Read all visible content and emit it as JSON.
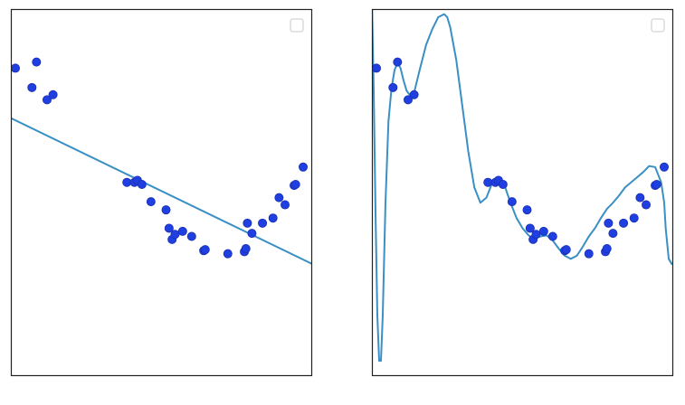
{
  "figure": {
    "background": "#ffffff"
  },
  "style": {
    "line_color": "#3a8fc4",
    "point_fill": "#1f3fe0",
    "point_edge": "#1a2fb0",
    "axes_edge": "#222222",
    "legend_edge": "#c8c8c8"
  },
  "chart_data": [
    {
      "type": "scatter",
      "title": "",
      "xlabel": "",
      "ylabel": "",
      "xlim": [
        0,
        1
      ],
      "ylim": [
        -2.2,
        1.4
      ],
      "xticks": [],
      "yticks": [],
      "grid": false,
      "legend": {
        "placement": "top-right",
        "entries": []
      },
      "points": {
        "x": [
          0.015,
          0.07,
          0.085,
          0.12,
          0.14,
          0.385,
          0.41,
          0.42,
          0.435,
          0.465,
          0.515,
          0.525,
          0.535,
          0.545,
          0.57,
          0.6,
          0.64,
          0.645,
          0.72,
          0.775,
          0.78,
          0.785,
          0.8,
          0.835,
          0.87,
          0.89,
          0.91,
          0.94,
          0.945,
          0.97
        ],
        "y": [
          0.82,
          0.63,
          0.88,
          0.51,
          0.56,
          -0.3,
          -0.3,
          -0.28,
          -0.32,
          -0.49,
          -0.57,
          -0.75,
          -0.86,
          -0.81,
          -0.78,
          -0.83,
          -0.97,
          -0.96,
          -1.0,
          -0.98,
          -0.95,
          -0.7,
          -0.8,
          -0.7,
          -0.65,
          -0.45,
          -0.52,
          -0.33,
          -0.32,
          -0.15
        ]
      },
      "fit": {
        "label": "",
        "x": [
          0.0,
          1.0
        ],
        "y": [
          0.33,
          -1.1
        ]
      }
    },
    {
      "type": "scatter",
      "title": "",
      "xlabel": "",
      "ylabel": "",
      "xlim": [
        0,
        1
      ],
      "ylim": [
        -2.2,
        1.4
      ],
      "xticks": [],
      "yticks": [],
      "grid": false,
      "legend": {
        "placement": "top-right",
        "entries": []
      },
      "points": {
        "x": [
          0.015,
          0.07,
          0.085,
          0.12,
          0.14,
          0.385,
          0.41,
          0.42,
          0.435,
          0.465,
          0.515,
          0.525,
          0.535,
          0.545,
          0.57,
          0.6,
          0.64,
          0.645,
          0.72,
          0.775,
          0.78,
          0.785,
          0.8,
          0.835,
          0.87,
          0.89,
          0.91,
          0.94,
          0.945,
          0.97
        ],
        "y": [
          0.82,
          0.63,
          0.88,
          0.51,
          0.56,
          -0.3,
          -0.3,
          -0.28,
          -0.32,
          -0.49,
          -0.57,
          -0.75,
          -0.86,
          -0.81,
          -0.78,
          -0.83,
          -0.97,
          -0.96,
          -1.0,
          -0.98,
          -0.95,
          -0.7,
          -0.8,
          -0.7,
          -0.65,
          -0.45,
          -0.52,
          -0.33,
          -0.32,
          -0.15
        ]
      },
      "fit": {
        "label": "",
        "x": [
          0.0,
          0.006,
          0.012,
          0.018,
          0.024,
          0.03,
          0.036,
          0.045,
          0.055,
          0.065,
          0.075,
          0.085,
          0.095,
          0.105,
          0.115,
          0.13,
          0.14,
          0.16,
          0.18,
          0.2,
          0.22,
          0.24,
          0.25,
          0.26,
          0.28,
          0.3,
          0.32,
          0.34,
          0.36,
          0.38,
          0.4,
          0.42,
          0.44,
          0.46,
          0.48,
          0.5,
          0.52,
          0.54,
          0.56,
          0.58,
          0.6,
          0.62,
          0.64,
          0.66,
          0.68,
          0.7,
          0.72,
          0.74,
          0.76,
          0.78,
          0.8,
          0.82,
          0.84,
          0.86,
          0.88,
          0.9,
          0.92,
          0.94,
          0.96,
          0.97,
          0.975,
          0.985,
          0.995,
          1.0
        ],
        "y": [
          1.5,
          0.6,
          -0.6,
          -1.6,
          -2.05,
          -2.05,
          -1.6,
          -0.5,
          0.3,
          0.62,
          0.8,
          0.87,
          0.82,
          0.7,
          0.6,
          0.54,
          0.58,
          0.82,
          1.05,
          1.2,
          1.32,
          1.35,
          1.32,
          1.22,
          0.9,
          0.45,
          0.0,
          -0.35,
          -0.5,
          -0.45,
          -0.3,
          -0.26,
          -0.33,
          -0.5,
          -0.65,
          -0.75,
          -0.82,
          -0.85,
          -0.83,
          -0.82,
          -0.87,
          -0.95,
          -1.02,
          -1.05,
          -1.02,
          -0.93,
          -0.83,
          -0.75,
          -0.65,
          -0.56,
          -0.5,
          -0.43,
          -0.35,
          -0.3,
          -0.25,
          -0.2,
          -0.14,
          -0.15,
          -0.3,
          -0.5,
          -0.75,
          -1.05,
          -1.1,
          -1.1
        ]
      }
    }
  ]
}
